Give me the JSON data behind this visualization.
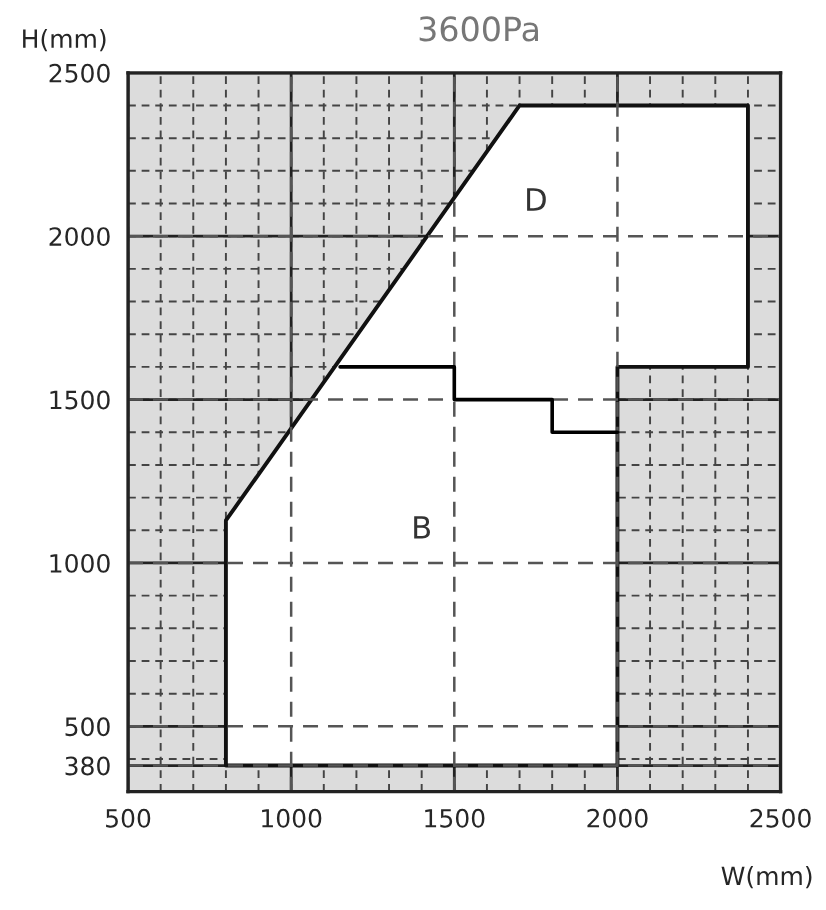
{
  "chart_data": {
    "type": "line",
    "title": "3600Pa",
    "xlabel": "W(mm)",
    "ylabel": "H(mm)",
    "xlim": [
      500,
      2500
    ],
    "ylim": [
      300,
      2500
    ],
    "xticks": [
      500,
      1000,
      1500,
      2000,
      2500
    ],
    "yticks": [
      380,
      500,
      1000,
      1500,
      2000,
      2500
    ],
    "grid": true,
    "series": [
      {
        "type": "area",
        "color": "#ffffff",
        "x": [
          800,
          800,
          1700,
          2400,
          2400,
          2000,
          2000,
          800
        ],
        "values": [
          380,
          1130,
          2400,
          2400,
          1600,
          1600,
          380,
          380
        ]
      },
      {
        "color": "#000000",
        "x": [
          1150,
          1500,
          1500,
          1800,
          1800,
          2000
        ],
        "values": [
          1600,
          1600,
          1500,
          1500,
          1400,
          1400
        ]
      }
    ],
    "annotations": [
      "D",
      "B"
    ]
  }
}
